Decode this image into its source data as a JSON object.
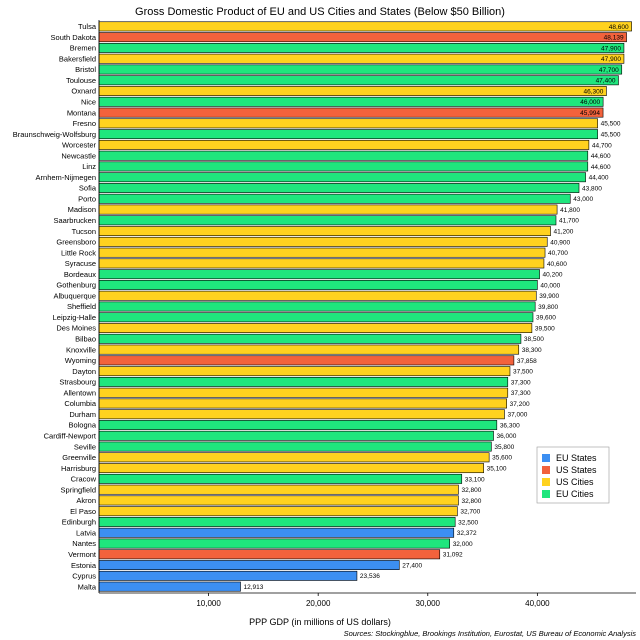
{
  "chart_data": {
    "type": "bar",
    "orientation": "horizontal",
    "title": "Gross Domestic Product of EU and US Cities and States (Below $50 Billion)",
    "xlabel": "PPP GDP (in millions of US dollars)",
    "ylabel": "",
    "source": "Sources: Stockingblue, Brookings Institution, Eurostat, US Bureau of Economic Analysis",
    "xlim": [
      0,
      49000
    ],
    "xticks": [
      10000,
      20000,
      30000,
      40000
    ],
    "xtick_labels": [
      "10,000",
      "20,000",
      "30,000",
      "40,000"
    ],
    "grid": false,
    "legend_position": "bottom-right",
    "colors": {
      "EU States": "#3c8ff2",
      "US States": "#f2623c",
      "US Cities": "#ffd21f",
      "EU Cities": "#1fe67d"
    },
    "legend": [
      "EU States",
      "US States",
      "US Cities",
      "EU Cities"
    ],
    "bars": [
      {
        "name": "Tulsa",
        "value": 48600,
        "label": "48,600",
        "group": "US Cities"
      },
      {
        "name": "South Dakota",
        "value": 48139,
        "label": "48,139",
        "group": "US States"
      },
      {
        "name": "Bremen",
        "value": 47900,
        "label": "47,900",
        "group": "EU Cities"
      },
      {
        "name": "Bakersfield",
        "value": 47900,
        "label": "47,900",
        "group": "US Cities"
      },
      {
        "name": "Bristol",
        "value": 47700,
        "label": "47,700",
        "group": "EU Cities"
      },
      {
        "name": "Toulouse",
        "value": 47400,
        "label": "47,400",
        "group": "EU Cities"
      },
      {
        "name": "Oxnard",
        "value": 46300,
        "label": "46,300",
        "group": "US Cities"
      },
      {
        "name": "Nice",
        "value": 46000,
        "label": "46,000",
        "group": "EU Cities"
      },
      {
        "name": "Montana",
        "value": 45994,
        "label": "45,994",
        "group": "US States"
      },
      {
        "name": "Fresno",
        "value": 45500,
        "label": "45,500",
        "group": "US Cities"
      },
      {
        "name": "Braunschweig-Wolfsburg",
        "value": 45500,
        "label": "45,500",
        "group": "EU Cities"
      },
      {
        "name": "Worcester",
        "value": 44700,
        "label": "44,700",
        "group": "US Cities"
      },
      {
        "name": "Newcastle",
        "value": 44600,
        "label": "44,600",
        "group": "EU Cities"
      },
      {
        "name": "Linz",
        "value": 44600,
        "label": "44,600",
        "group": "EU Cities"
      },
      {
        "name": "Arnhem-Nijmegen",
        "value": 44400,
        "label": "44,400",
        "group": "EU Cities"
      },
      {
        "name": "Sofia",
        "value": 43800,
        "label": "43,800",
        "group": "EU Cities"
      },
      {
        "name": "Porto",
        "value": 43000,
        "label": "43,000",
        "group": "EU Cities"
      },
      {
        "name": "Madison",
        "value": 41800,
        "label": "41,800",
        "group": "US Cities"
      },
      {
        "name": "Saarbrucken",
        "value": 41700,
        "label": "41,700",
        "group": "EU Cities"
      },
      {
        "name": "Tucson",
        "value": 41200,
        "label": "41,200",
        "group": "US Cities"
      },
      {
        "name": "Greensboro",
        "value": 40900,
        "label": "40,900",
        "group": "US Cities"
      },
      {
        "name": "Little Rock",
        "value": 40700,
        "label": "40,700",
        "group": "US Cities"
      },
      {
        "name": "Syracuse",
        "value": 40600,
        "label": "40,600",
        "group": "US Cities"
      },
      {
        "name": "Bordeaux",
        "value": 40200,
        "label": "40,200",
        "group": "EU Cities"
      },
      {
        "name": "Gothenburg",
        "value": 40000,
        "label": "40,000",
        "group": "EU Cities"
      },
      {
        "name": "Albuquerque",
        "value": 39900,
        "label": "39,900",
        "group": "US Cities"
      },
      {
        "name": "Sheffield",
        "value": 39800,
        "label": "39,800",
        "group": "EU Cities"
      },
      {
        "name": "Leipzig-Halle",
        "value": 39600,
        "label": "39,600",
        "group": "EU Cities"
      },
      {
        "name": "Des Moines",
        "value": 39500,
        "label": "39,500",
        "group": "US Cities"
      },
      {
        "name": "Bilbao",
        "value": 38500,
        "label": "38,500",
        "group": "EU Cities"
      },
      {
        "name": "Knoxville",
        "value": 38300,
        "label": "38,300",
        "group": "US Cities"
      },
      {
        "name": "Wyoming",
        "value": 37858,
        "label": "37,858",
        "group": "US States"
      },
      {
        "name": "Dayton",
        "value": 37500,
        "label": "37,500",
        "group": "US Cities"
      },
      {
        "name": "Strasbourg",
        "value": 37300,
        "label": "37,300",
        "group": "EU Cities"
      },
      {
        "name": "Allentown",
        "value": 37300,
        "label": "37,300",
        "group": "US Cities"
      },
      {
        "name": "Columbia",
        "value": 37200,
        "label": "37,200",
        "group": "US Cities"
      },
      {
        "name": "Durham",
        "value": 37000,
        "label": "37,000",
        "group": "US Cities"
      },
      {
        "name": "Bologna",
        "value": 36300,
        "label": "36,300",
        "group": "EU Cities"
      },
      {
        "name": "Cardiff-Newport",
        "value": 36000,
        "label": "36,000",
        "group": "EU Cities"
      },
      {
        "name": "Seville",
        "value": 35800,
        "label": "35,800",
        "group": "EU Cities"
      },
      {
        "name": "Greenville",
        "value": 35600,
        "label": "35,600",
        "group": "US Cities"
      },
      {
        "name": "Harrisburg",
        "value": 35100,
        "label": "35,100",
        "group": "US Cities"
      },
      {
        "name": "Cracow",
        "value": 33100,
        "label": "33,100",
        "group": "EU Cities"
      },
      {
        "name": "Springfield",
        "value": 32800,
        "label": "32,800",
        "group": "US Cities"
      },
      {
        "name": "Akron",
        "value": 32800,
        "label": "32,800",
        "group": "US Cities"
      },
      {
        "name": "El Paso",
        "value": 32700,
        "label": "32,700",
        "group": "US Cities"
      },
      {
        "name": "Edinburgh",
        "value": 32500,
        "label": "32,500",
        "group": "EU Cities"
      },
      {
        "name": "Latvia",
        "value": 32372,
        "label": "32,372",
        "group": "EU States"
      },
      {
        "name": "Nantes",
        "value": 32000,
        "label": "32,000",
        "group": "EU Cities"
      },
      {
        "name": "Vermont",
        "value": 31092,
        "label": "31,092",
        "group": "US States"
      },
      {
        "name": "Estonia",
        "value": 27400,
        "label": "27,400",
        "group": "EU States"
      },
      {
        "name": "Cyprus",
        "value": 23536,
        "label": "23,536",
        "group": "EU States"
      },
      {
        "name": "Malta",
        "value": 12913,
        "label": "12,913",
        "group": "EU States"
      }
    ]
  }
}
